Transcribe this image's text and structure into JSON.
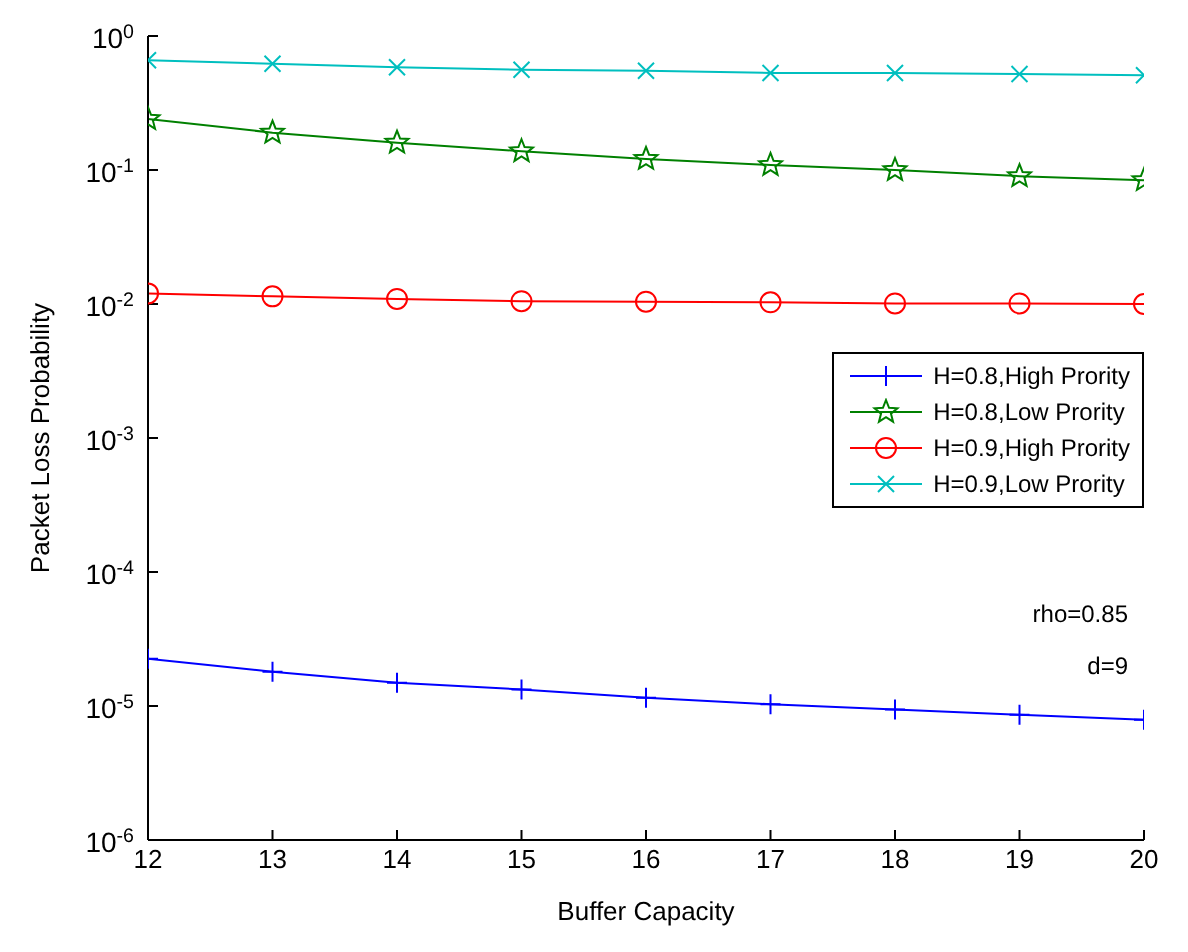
{
  "chart_data": {
    "type": "line",
    "xlabel": "Buffer Capacity",
    "ylabel": "Packet Loss Probability",
    "x": [
      12,
      13,
      14,
      15,
      16,
      17,
      18,
      19,
      20
    ],
    "xlim": [
      12,
      20
    ],
    "xticks": [
      12,
      13,
      14,
      15,
      16,
      17,
      18,
      19,
      20
    ],
    "ylim": [
      1e-06,
      1
    ],
    "yticks": [
      {
        "value": 1e-06,
        "label": "10$^{-6}$"
      },
      {
        "value": 1e-05,
        "label": "10$^{-5}$"
      },
      {
        "value": 0.0001,
        "label": "10$^{-4}$"
      },
      {
        "value": 0.001,
        "label": "10$^{-3}$"
      },
      {
        "value": 0.01,
        "label": "10$^{-2}$"
      },
      {
        "value": 0.1,
        "label": "10$^{-1}$"
      },
      {
        "value": 1,
        "label": "10$^{0}$"
      }
    ],
    "log": "y",
    "grid": false,
    "legend": "right",
    "line_style": "solid",
    "series": [
      {
        "name": "H=0.8,High Prority",
        "color": "#0000ff",
        "marker": "cross",
        "values": [
          2.25e-05,
          1.8e-05,
          1.49e-05,
          1.33e-05,
          1.15e-05,
          1.03e-05,
          9.4e-06,
          8.6e-06,
          7.9e-06
        ]
      },
      {
        "name": "H=0.8,Low Prority",
        "color": "#008000",
        "marker": "star",
        "values": [
          0.24,
          0.19,
          0.16,
          0.138,
          0.121,
          0.109,
          0.1,
          0.09,
          0.084
        ]
      },
      {
        "name": "H=0.9,High Prority",
        "color": "#ff0000",
        "marker": "circle",
        "values": [
          0.012,
          0.0114,
          0.0109,
          0.0105,
          0.0104,
          0.0103,
          0.0101,
          0.0101,
          0.01
        ]
      },
      {
        "name": "H=0.9,Low Prority",
        "color": "#00bfbf",
        "marker": "x",
        "values": [
          0.66,
          0.62,
          0.585,
          0.56,
          0.55,
          0.53,
          0.53,
          0.52,
          0.51
        ]
      }
    ],
    "annotations": [
      "rho=0.85",
      "d=9"
    ]
  }
}
